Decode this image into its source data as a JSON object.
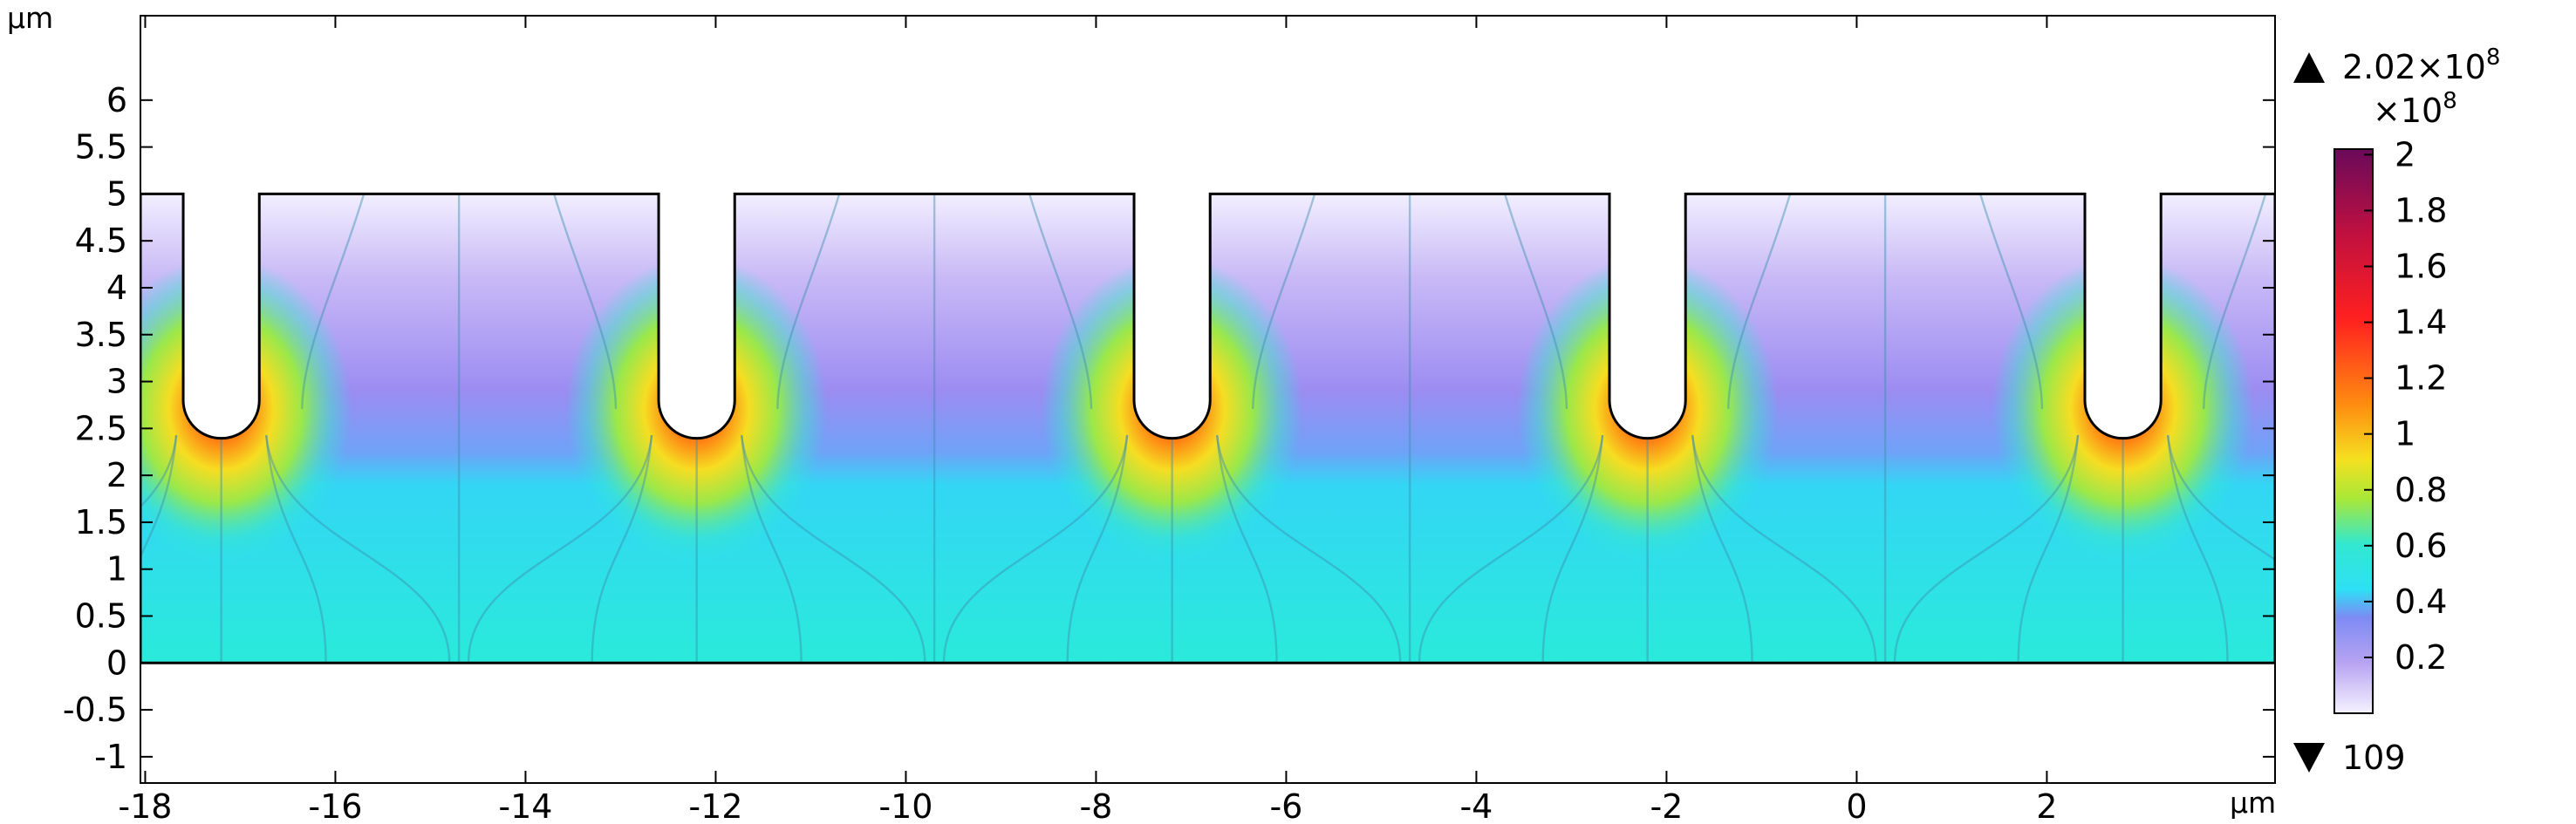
{
  "chart_data": {
    "type": "heatmap",
    "title": "",
    "xlabel": "",
    "ylabel": "",
    "x_unit": "µm",
    "y_unit": "µm",
    "xlim": [
      -18.05,
      4.4
    ],
    "ylim": [
      -1.28,
      6.9
    ],
    "x_ticks": [
      "-18",
      "-16",
      "-14",
      "-12",
      "-10",
      "-8",
      "-6",
      "-4",
      "-2",
      "0",
      "2"
    ],
    "x_tick_values": [
      -18,
      -16,
      -14,
      -12,
      -10,
      -8,
      -6,
      -4,
      -2,
      0,
      2
    ],
    "y_ticks": [
      "-1",
      "-0.5",
      "0",
      "0.5",
      "1",
      "1.5",
      "2",
      "2.5",
      "3",
      "3.5",
      "4",
      "4.5",
      "5",
      "5.5",
      "6"
    ],
    "y_tick_values": [
      -1,
      -0.5,
      0,
      0.5,
      1,
      1.5,
      2,
      2.5,
      3,
      3.5,
      4,
      4.5,
      5,
      5.5,
      6
    ],
    "domain": {
      "x_min": -18.05,
      "x_max": 4.4,
      "y_bottom": 0,
      "y_top": 5,
      "trench_centers": [
        -17.2,
        -12.2,
        -7.2,
        -2.2,
        2.8
      ],
      "trench_half_width": 0.4,
      "trench_bottom_center_y": 2.8
    },
    "colorbar": {
      "scale_label": "×10",
      "scale_exponent": "8",
      "max_label": "2.02×10",
      "max_exponent": "8",
      "min_label": "109",
      "ticks": [
        "2",
        "1.8",
        "1.6",
        "1.4",
        "1.2",
        "1",
        "0.8",
        "0.6",
        "0.4",
        "0.2"
      ],
      "tick_values": [
        2,
        1.8,
        1.6,
        1.4,
        1.2,
        1,
        0.8,
        0.6,
        0.4,
        0.2
      ],
      "range": [
        0,
        2.02
      ],
      "colormap": [
        "#f5f2ff",
        "#c9b8f5",
        "#a88cf0",
        "#7d8bf5",
        "#2ee0f5",
        "#32e8d0",
        "#a8e838",
        "#f5e020",
        "#ff8a10",
        "#ff2020",
        "#c01040",
        "#6a0a5a"
      ]
    },
    "contour_lines": true
  }
}
